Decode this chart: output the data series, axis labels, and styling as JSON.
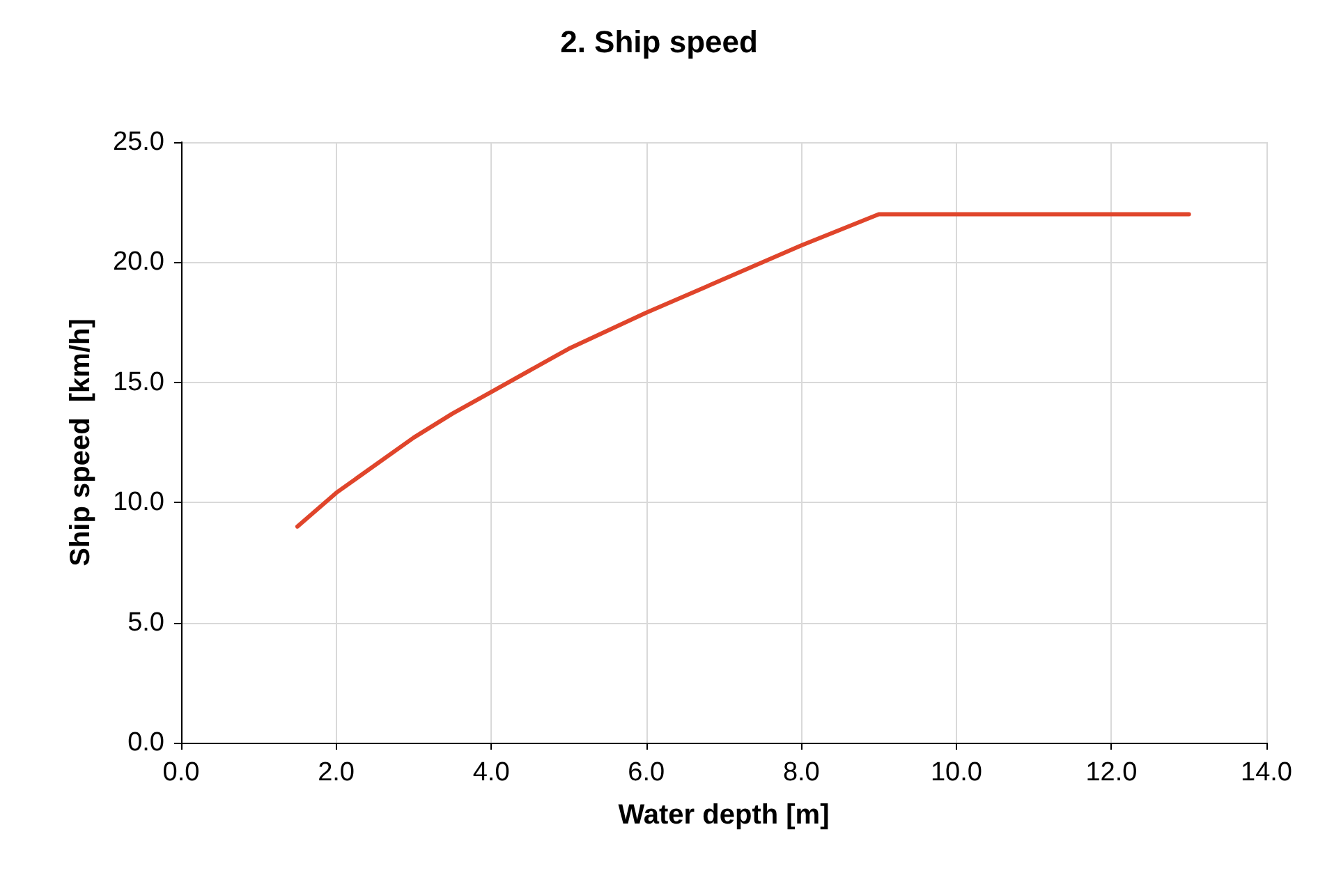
{
  "chart_data": {
    "type": "line",
    "title": "2. Ship speed",
    "xlabel": "Water depth [m]",
    "ylabel": "Ship speed  [km/h]",
    "x": [
      1.5,
      2,
      3,
      3.5,
      4,
      5,
      6,
      7,
      8,
      9,
      13
    ],
    "series": [
      {
        "color": "#e0452b",
        "values": [
          9.0,
          10.4,
          12.7,
          13.7,
          14.6,
          16.4,
          17.9,
          19.3,
          20.7,
          22.0,
          22.0
        ]
      }
    ],
    "xlim": [
      0,
      14
    ],
    "xticks": [
      {
        "value": 0,
        "label": "0.0"
      },
      {
        "value": 2,
        "label": "2.0"
      },
      {
        "value": 4,
        "label": "4.0"
      },
      {
        "value": 6,
        "label": "6.0"
      },
      {
        "value": 8,
        "label": "8.0"
      },
      {
        "value": 10,
        "label": "10.0"
      },
      {
        "value": 12,
        "label": "12.0"
      },
      {
        "value": 14,
        "label": "14.0"
      }
    ],
    "ylim": [
      0,
      25
    ],
    "yticks": [
      {
        "value": 0,
        "label": "0.0"
      },
      {
        "value": 5,
        "label": "5.0"
      },
      {
        "value": 10,
        "label": "10.0"
      },
      {
        "value": 15,
        "label": "15.0"
      },
      {
        "value": 20,
        "label": "20.0"
      },
      {
        "value": 25,
        "label": "25.0"
      }
    ],
    "grid": true,
    "marker": "none",
    "line_style": "solid"
  }
}
